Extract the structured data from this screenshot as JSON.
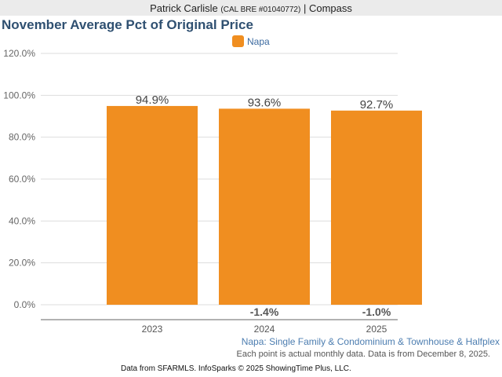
{
  "header": {
    "agent_name": "Patrick Carlisle",
    "license": "(CAL BRE #01040772)",
    "separator": "|",
    "brokerage": "Compass"
  },
  "colors": {
    "bar": "#f08e20",
    "title": "#2f5071",
    "grid": "#dddddd",
    "axis": "#666666"
  },
  "chart_data": {
    "type": "bar",
    "title": "November Average Pct of Original Price",
    "legend": [
      {
        "name": "Napa",
        "color": "#f08e20"
      }
    ],
    "legend_position": "top-center",
    "categories": [
      "2023",
      "2024",
      "2025"
    ],
    "series": [
      {
        "name": "Napa",
        "values": [
          94.9,
          93.6,
          92.7
        ]
      }
    ],
    "value_labels": [
      "94.9%",
      "93.6%",
      "92.7%"
    ],
    "change_labels": [
      "",
      "-1.4%",
      "-1.0%"
    ],
    "xlabel": "",
    "ylabel": "",
    "ylim": [
      0,
      120
    ],
    "yticks": [
      0,
      20,
      40,
      60,
      80,
      100,
      120
    ],
    "ytick_labels": [
      "0.0%",
      "20.0%",
      "40.0%",
      "60.0%",
      "80.0%",
      "100.0%",
      "120.0%"
    ],
    "grid": true
  },
  "footer": {
    "subtitle": "Napa: Single Family & Condominium & Townhouse & Halfplex",
    "note": "Each point is actual monthly data. Data is from December 8, 2025.",
    "credit": "Data from SFARMLS. InfoSparks © 2025 ShowingTime Plus, LLC."
  }
}
